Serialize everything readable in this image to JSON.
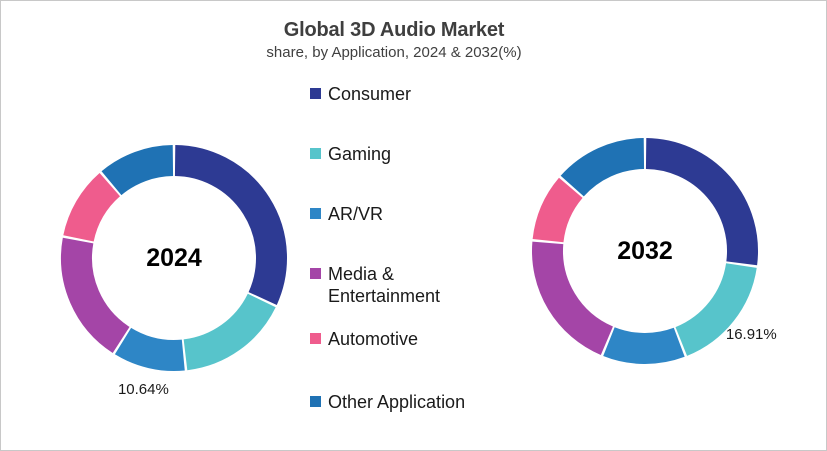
{
  "header": {
    "title": "Global 3D Audio Market",
    "subtitle": "share, by Application, 2024 & 2032(%)"
  },
  "legend": {
    "position": "center-between-donuts",
    "items": [
      {
        "label": "Consumer",
        "color": "#2D3A93"
      },
      {
        "label": "Gaming",
        "color": "#57C4CB"
      },
      {
        "label": "AR/VR",
        "color": "#2E86C6"
      },
      {
        "label": "Media & Entertainment",
        "color": "#A445A7"
      },
      {
        "label": "Automotive",
        "color": "#EF5C8D"
      },
      {
        "label": "Other Application",
        "color": "#1F72B4"
      }
    ]
  },
  "chart_data": [
    {
      "type": "pie",
      "subtype": "donut",
      "center_label": "2024",
      "categories": [
        "Consumer",
        "Gaming",
        "AR/VR",
        "Media & Entertainment",
        "Automotive",
        "Other Application"
      ],
      "values": [
        32.0,
        16.3,
        10.64,
        19.1,
        10.7,
        11.26
      ],
      "colors": [
        "#2D3A93",
        "#57C4CB",
        "#2E86C6",
        "#A445A7",
        "#EF5C8D",
        "#1F72B4"
      ],
      "data_labels": [
        "",
        "",
        "10.64%",
        "",
        "",
        ""
      ],
      "start_angle_deg": 0,
      "direction": "clockwise"
    },
    {
      "type": "pie",
      "subtype": "donut",
      "center_label": "2032",
      "categories": [
        "Consumer",
        "Gaming",
        "AR/VR",
        "Media & Entertainment",
        "Automotive",
        "Other Application"
      ],
      "values": [
        27.2,
        16.91,
        12.1,
        20.3,
        9.9,
        13.59
      ],
      "colors": [
        "#2D3A93",
        "#57C4CB",
        "#2E86C6",
        "#A445A7",
        "#EF5C8D",
        "#1F72B4"
      ],
      "data_labels": [
        "",
        "16.91%",
        "",
        "",
        "",
        ""
      ],
      "start_angle_deg": 0,
      "direction": "clockwise"
    }
  ]
}
